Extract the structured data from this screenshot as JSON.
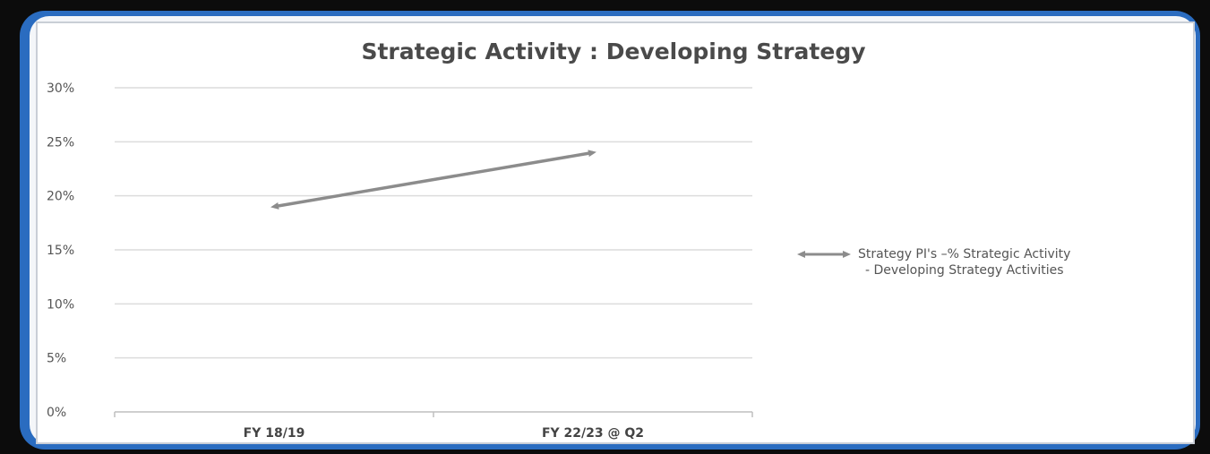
{
  "chart_data": {
    "type": "line",
    "title": "Strategic Activity : Developing Strategy",
    "xlabel": "",
    "ylabel": "",
    "categories": [
      "FY 18/19",
      "FY 22/23 @ Q2"
    ],
    "series": [
      {
        "name": "Strategy PI's –% Strategic Activity - Developing Strategy Activities",
        "values": [
          19,
          24
        ],
        "color": "#8c8c8c",
        "marker": "arrow"
      }
    ],
    "ylim": [
      0,
      30
    ],
    "yticks": [
      0,
      5,
      10,
      15,
      20,
      25,
      30
    ],
    "ytick_labels": [
      "0%",
      "5%",
      "10%",
      "15%",
      "20%",
      "25%",
      "30%"
    ],
    "grid": true,
    "legend_placement": "right"
  },
  "legend": {
    "line1": "Strategy PI's –% Strategic Activity",
    "line2": "- Developing Strategy Activities"
  },
  "colors": {
    "border_blue": "#2a6cc0",
    "series_gray": "#8c8c8c",
    "grid": "#dcdcdc"
  }
}
